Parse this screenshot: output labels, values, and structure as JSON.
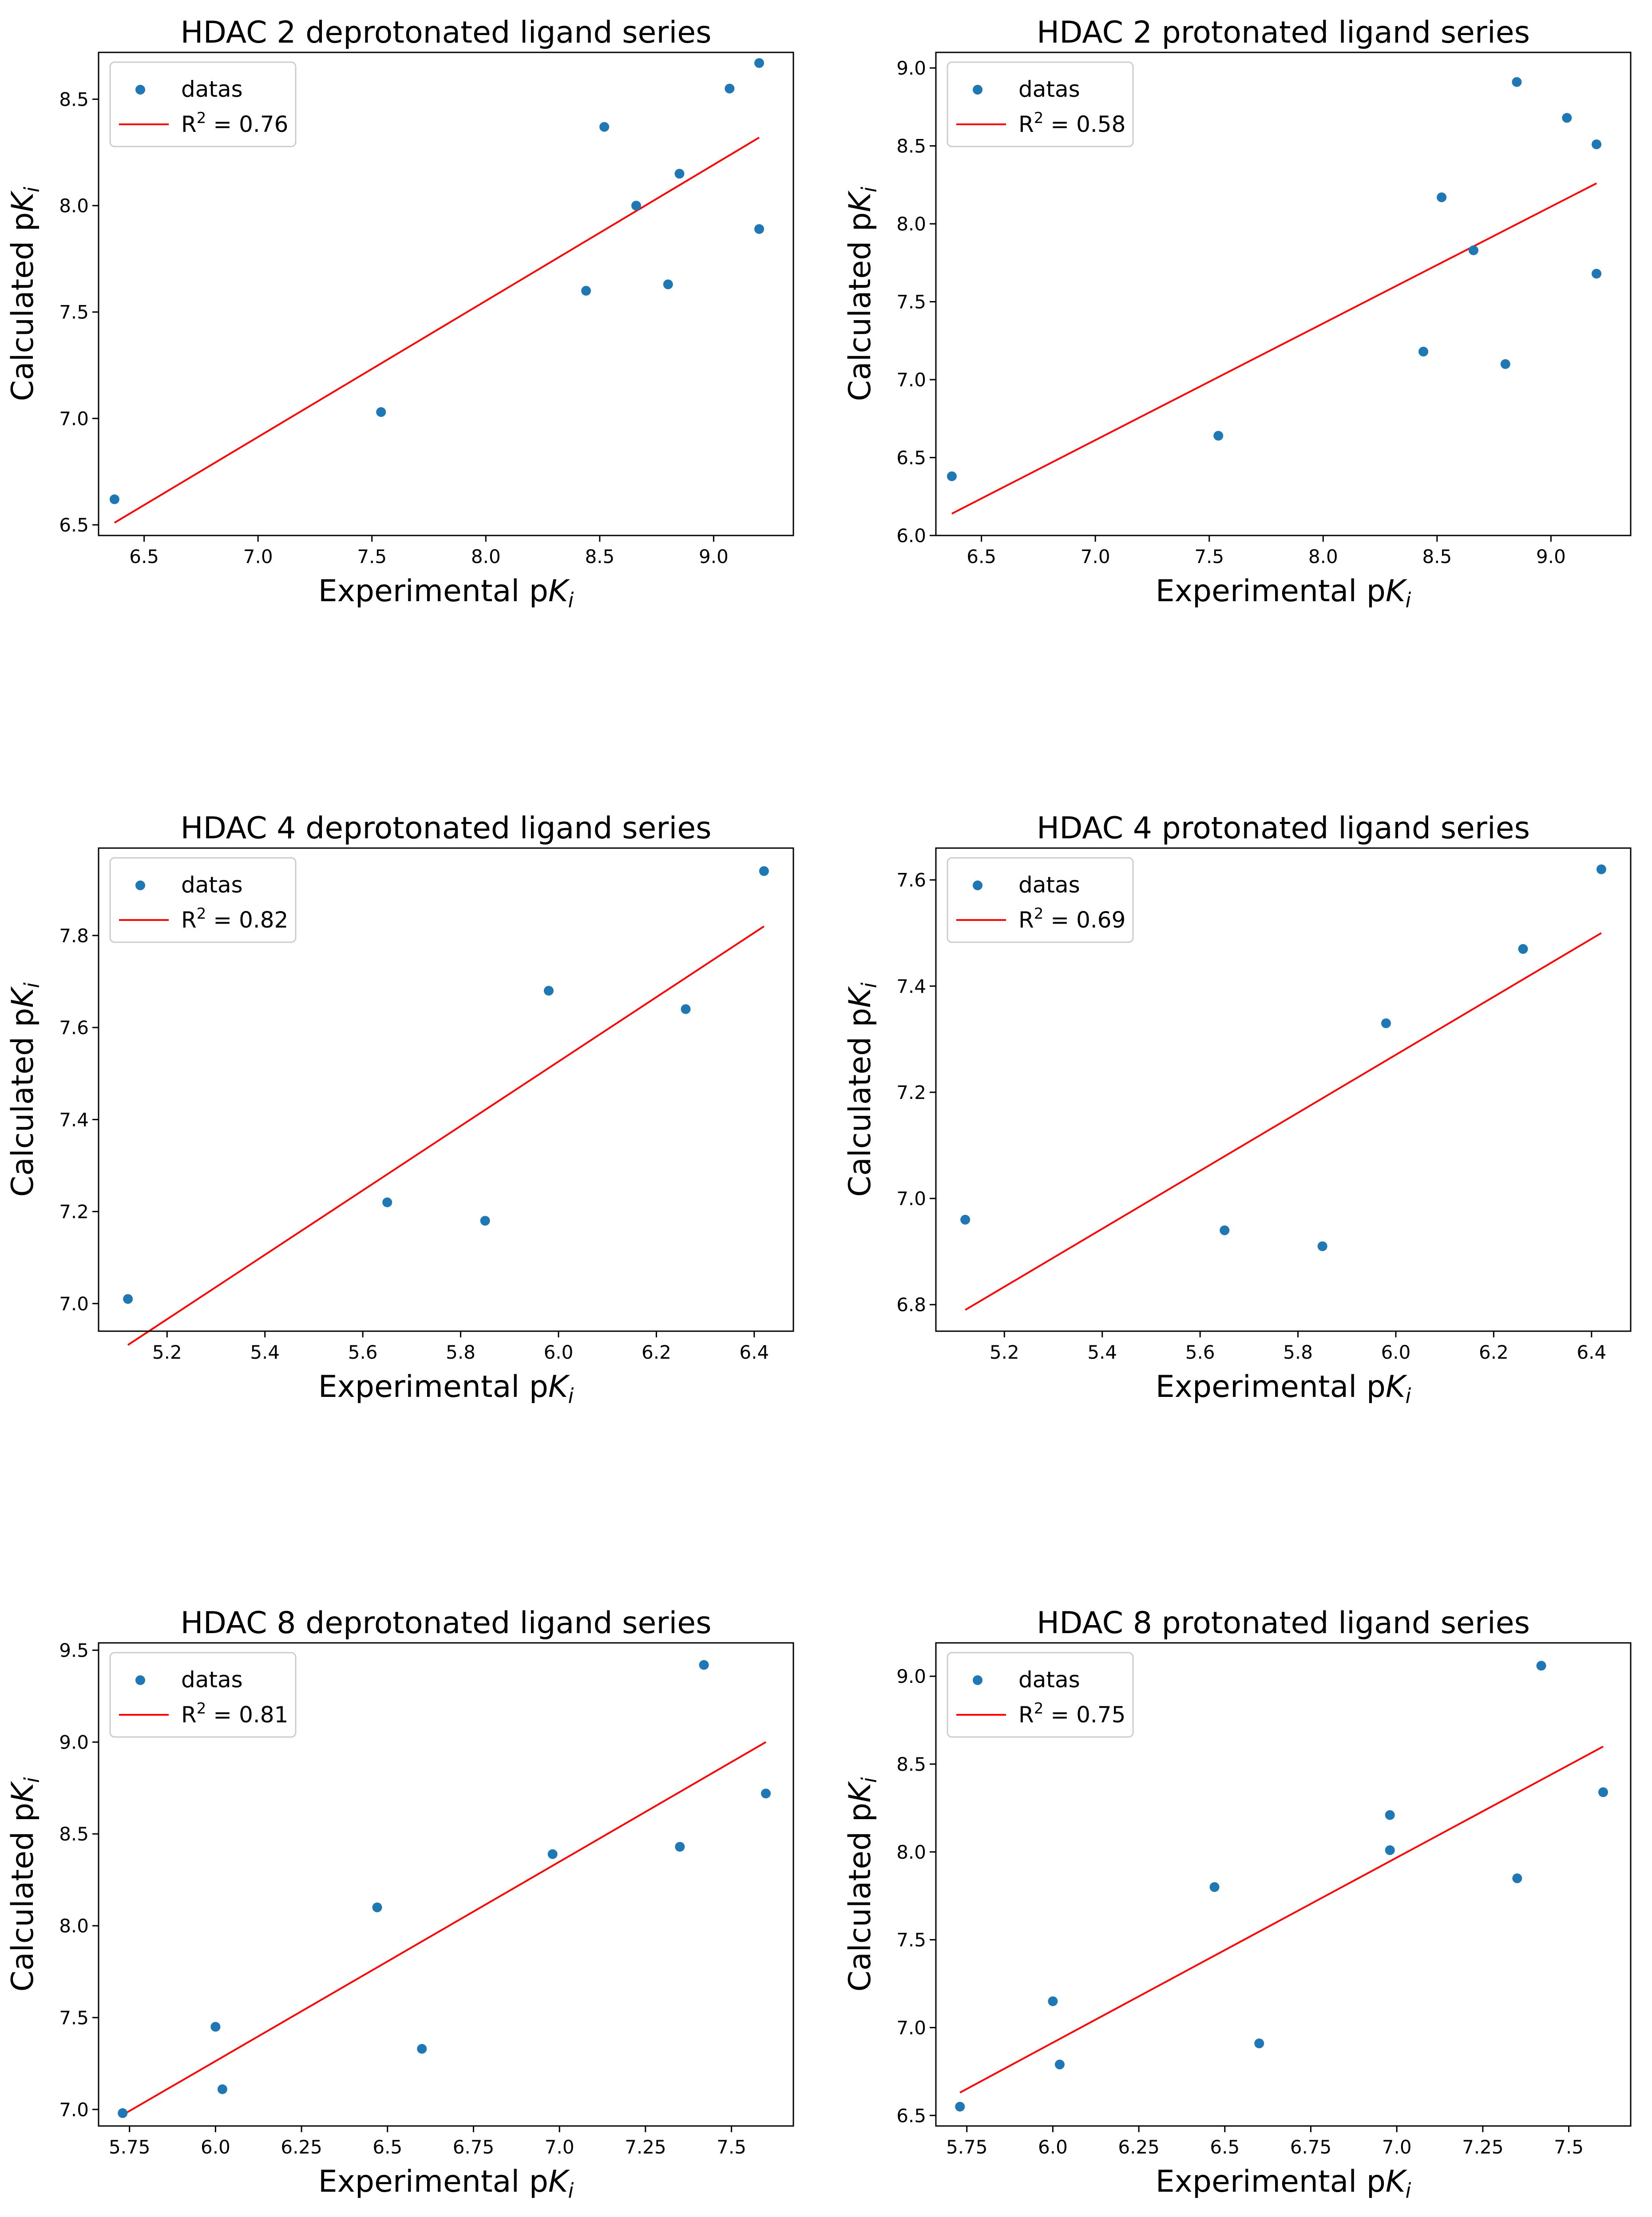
{
  "colors": {
    "points": "#1f77b4",
    "fit": "#ff0000",
    "axes": "#000000"
  },
  "legend_labels": {
    "points": "datas",
    "fit_prefix": "R",
    "fit_exponent": "2"
  },
  "axis_labels": {
    "x_main": "Experimental p",
    "y_main": "Calculated p",
    "var": "K",
    "sub": "i"
  },
  "chart_data": [
    {
      "type": "scatter",
      "title": "HDAC 2 deprotonated ligand series",
      "r2": "0.76",
      "xlim": [
        6.3,
        9.35
      ],
      "ylim": [
        6.45,
        8.72
      ],
      "xticks": [
        6.5,
        7.0,
        7.5,
        8.0,
        8.5,
        9.0
      ],
      "yticks": [
        6.5,
        7.0,
        7.5,
        8.0,
        8.5
      ],
      "x": [
        6.37,
        7.54,
        8.44,
        8.52,
        8.66,
        8.8,
        8.85,
        9.07,
        9.2,
        9.2
      ],
      "y": [
        6.62,
        7.03,
        7.6,
        8.37,
        8.0,
        7.63,
        8.15,
        8.55,
        8.67,
        7.89
      ],
      "fit": {
        "x": [
          6.37,
          9.2
        ],
        "y": [
          6.51,
          8.32
        ]
      }
    },
    {
      "type": "scatter",
      "title": "HDAC 2 protonated ligand series",
      "r2": "0.58",
      "xlim": [
        6.3,
        9.35
      ],
      "ylim": [
        6.0,
        9.1
      ],
      "xticks": [
        6.5,
        7.0,
        7.5,
        8.0,
        8.5,
        9.0
      ],
      "yticks": [
        6.0,
        6.5,
        7.0,
        7.5,
        8.0,
        8.5,
        9.0
      ],
      "x": [
        6.37,
        7.54,
        8.44,
        8.52,
        8.66,
        8.8,
        8.85,
        9.07,
        9.2,
        9.2
      ],
      "y": [
        6.38,
        6.64,
        7.18,
        8.17,
        7.83,
        7.1,
        8.91,
        8.68,
        8.51,
        7.68
      ],
      "fit": {
        "x": [
          6.37,
          9.2
        ],
        "y": [
          6.14,
          8.26
        ]
      }
    },
    {
      "type": "scatter",
      "title": "HDAC 4 deprotonated ligand series",
      "r2": "0.82",
      "xlim": [
        5.06,
        6.48
      ],
      "ylim": [
        6.94,
        7.99
      ],
      "xticks": [
        5.2,
        5.4,
        5.6,
        5.8,
        6.0,
        6.2,
        6.4
      ],
      "yticks": [
        7.0,
        7.2,
        7.4,
        7.6,
        7.8
      ],
      "x": [
        5.12,
        5.65,
        5.85,
        5.98,
        6.26,
        6.42
      ],
      "y": [
        7.01,
        7.22,
        7.18,
        7.68,
        7.64,
        7.94
      ],
      "fit": {
        "x": [
          5.12,
          6.42
        ],
        "y": [
          6.91,
          7.82
        ]
      }
    },
    {
      "type": "scatter",
      "title": "HDAC 4 protonated ligand series",
      "r2": "0.69",
      "xlim": [
        5.06,
        6.48
      ],
      "ylim": [
        6.75,
        7.66
      ],
      "xticks": [
        5.2,
        5.4,
        5.6,
        5.8,
        6.0,
        6.2,
        6.4
      ],
      "yticks": [
        6.8,
        7.0,
        7.2,
        7.4,
        7.6
      ],
      "x": [
        5.12,
        5.65,
        5.85,
        5.98,
        6.26,
        6.42
      ],
      "y": [
        6.96,
        6.94,
        6.91,
        7.33,
        7.47,
        7.62
      ],
      "fit": {
        "x": [
          5.12,
          6.42
        ],
        "y": [
          6.79,
          7.5
        ]
      }
    },
    {
      "type": "scatter",
      "title": "HDAC 8 deprotonated ligand series",
      "r2": "0.81",
      "xlim": [
        5.66,
        7.68
      ],
      "ylim": [
        6.91,
        9.54
      ],
      "xticks": [
        5.75,
        6.0,
        6.25,
        6.5,
        6.75,
        7.0,
        7.25,
        7.5
      ],
      "yticks": [
        7.0,
        7.5,
        8.0,
        8.5,
        9.0,
        9.5
      ],
      "x": [
        5.73,
        6.0,
        6.02,
        6.47,
        6.6,
        6.98,
        7.35,
        7.42,
        7.6
      ],
      "y": [
        6.98,
        7.45,
        7.11,
        8.1,
        7.33,
        8.39,
        8.43,
        9.42,
        8.72
      ],
      "fit": {
        "x": [
          5.73,
          7.6
        ],
        "y": [
          6.97,
          9.0
        ]
      }
    },
    {
      "type": "scatter",
      "title": "HDAC 8 protonated ligand series",
      "r2": "0.75",
      "xlim": [
        5.66,
        7.68
      ],
      "ylim": [
        6.44,
        9.19
      ],
      "xticks": [
        5.75,
        6.0,
        6.25,
        6.5,
        6.75,
        7.0,
        7.25,
        7.5
      ],
      "yticks": [
        6.5,
        7.0,
        7.5,
        8.0,
        8.5,
        9.0
      ],
      "x": [
        5.73,
        6.0,
        6.02,
        6.47,
        6.6,
        6.98,
        6.98,
        7.35,
        7.42,
        7.6
      ],
      "y": [
        6.55,
        7.15,
        6.79,
        7.8,
        6.91,
        8.21,
        8.01,
        7.85,
        9.06,
        8.34
      ],
      "fit": {
        "x": [
          5.73,
          7.6
        ],
        "y": [
          6.63,
          8.6
        ]
      }
    }
  ]
}
